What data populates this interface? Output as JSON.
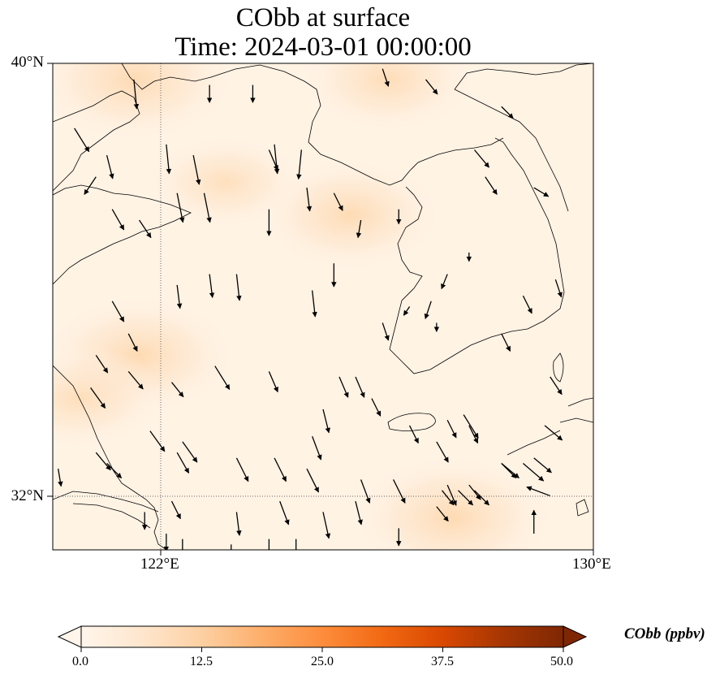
{
  "title": {
    "line1": "CObb at surface",
    "line2": "Time: 2024-03-01 00:00:00"
  },
  "map": {
    "lat_labels": [
      "40°N",
      "32°N"
    ],
    "lon_labels": [
      "122°E",
      "130°E"
    ],
    "extent": {
      "lon_min": 120,
      "lon_max": 130,
      "lat_min": 31,
      "lat_max": 40
    },
    "gridlines": {
      "lon": 122,
      "lat": 32
    }
  },
  "colorbar": {
    "label": "CObb (ppbv)",
    "ticks": [
      "0.0",
      "12.5",
      "25.0",
      "37.5",
      "50.0"
    ],
    "min": 0,
    "max": 50,
    "colors": [
      "#fff5eb",
      "#fee6ce",
      "#fdd0a2",
      "#fdae6b",
      "#fd8d3c",
      "#f16913",
      "#d94801",
      "#a63603",
      "#7f2704"
    ],
    "extend": "both"
  },
  "field_highlights": [
    {
      "lon": 121.6,
      "lat": 34.6,
      "value": 9
    },
    {
      "lon": 125.5,
      "lat": 37.2,
      "value": 8
    },
    {
      "lon": 126.2,
      "lat": 39.7,
      "value": 7
    },
    {
      "lon": 127.4,
      "lat": 31.6,
      "value": 10
    },
    {
      "lon": 121.5,
      "lat": 39.7,
      "value": 10
    },
    {
      "lon": 120.5,
      "lat": 33.8,
      "value": 6
    },
    {
      "lon": 123.2,
      "lat": 37.8,
      "value": 5
    }
  ],
  "wind_vectors": [
    [
      121.5,
      39.7,
      0.1,
      -1
    ],
    [
      120.4,
      38.8,
      0.5,
      -0.8
    ],
    [
      120.8,
      37.9,
      -0.4,
      -0.6
    ],
    [
      121.0,
      38.3,
      0.2,
      -0.8
    ],
    [
      121.1,
      37.3,
      0.4,
      -0.7
    ],
    [
      121.6,
      37.1,
      0.4,
      -0.6
    ],
    [
      122.1,
      38.5,
      0.1,
      -1
    ],
    [
      122.6,
      38.3,
      0.2,
      -1
    ],
    [
      122.8,
      37.6,
      0.2,
      -1
    ],
    [
      122.3,
      37.6,
      0.2,
      -1
    ],
    [
      122.9,
      39.6,
      0,
      -0.6
    ],
    [
      123.7,
      39.6,
      0,
      -0.6
    ],
    [
      124.1,
      38.5,
      0.1,
      -1
    ],
    [
      124.6,
      38.4,
      -0.1,
      -1
    ],
    [
      124.0,
      38.4,
      0.3,
      -0.7
    ],
    [
      124.0,
      37.3,
      0,
      -0.9
    ],
    [
      124.7,
      37.7,
      0.1,
      -0.8
    ],
    [
      125.2,
      37.6,
      0.3,
      -0.6
    ],
    [
      125.7,
      37.1,
      -0.1,
      -0.6
    ],
    [
      126.1,
      39.9,
      0.2,
      -0.6
    ],
    [
      126.9,
      39.7,
      0.4,
      -0.5
    ],
    [
      127.8,
      38.4,
      0.5,
      -0.6
    ],
    [
      128.3,
      39.2,
      0.4,
      -0.4
    ],
    [
      128.0,
      37.9,
      0.4,
      -0.6
    ],
    [
      125.2,
      36.3,
      0,
      -0.8
    ],
    [
      122.3,
      35.9,
      0.1,
      -0.8
    ],
    [
      122.9,
      36.1,
      0.1,
      -0.8
    ],
    [
      123.4,
      36.1,
      0.1,
      -0.9
    ],
    [
      124.8,
      35.8,
      0.1,
      -0.9
    ],
    [
      126.1,
      35.2,
      0.2,
      -0.6
    ],
    [
      127.0,
      35.6,
      -0.2,
      -0.6
    ],
    [
      128.3,
      35.0,
      0.3,
      -0.6
    ],
    [
      128.7,
      35.7,
      0.3,
      -0.6
    ],
    [
      121.1,
      35.6,
      0.4,
      -0.7
    ],
    [
      120.8,
      34.6,
      0.4,
      -0.6
    ],
    [
      121.4,
      35.0,
      0.3,
      -0.6
    ],
    [
      121.4,
      34.3,
      0.5,
      -0.6
    ],
    [
      120.7,
      34.0,
      0.5,
      -0.7
    ],
    [
      122.2,
      34.1,
      0.4,
      -0.5
    ],
    [
      123.0,
      34.4,
      0.5,
      -0.8
    ],
    [
      124.0,
      34.3,
      0.3,
      -0.7
    ],
    [
      125.3,
      34.2,
      0.3,
      -0.7
    ],
    [
      125.9,
      33.8,
      0.3,
      -0.6
    ],
    [
      125.6,
      34.2,
      0.3,
      -0.7
    ],
    [
      126.6,
      33.3,
      0.3,
      -0.6
    ],
    [
      127.3,
      33.4,
      0.3,
      -0.6
    ],
    [
      127.7,
      33.3,
      0.3,
      -0.6
    ],
    [
      129.2,
      34.2,
      0.4,
      -0.6
    ],
    [
      125.0,
      33.6,
      0.2,
      -0.8
    ],
    [
      124.8,
      33.1,
      0.3,
      -0.8
    ],
    [
      121.8,
      33.2,
      0.5,
      -0.7
    ],
    [
      122.4,
      33.0,
      0.5,
      -0.7
    ],
    [
      121.0,
      32.6,
      0.5,
      -0.5
    ],
    [
      120.8,
      32.8,
      0.5,
      -0.6
    ],
    [
      120.1,
      32.5,
      0.1,
      -0.6
    ],
    [
      122.3,
      32.8,
      0.4,
      -0.7
    ],
    [
      122.2,
      31.9,
      0.3,
      -0.6
    ],
    [
      123.4,
      32.7,
      0.4,
      -0.8
    ],
    [
      124.1,
      32.7,
      0.4,
      -0.8
    ],
    [
      124.7,
      32.5,
      0.4,
      -0.8
    ],
    [
      125.7,
      32.3,
      0.3,
      -0.8
    ],
    [
      126.3,
      32.3,
      0.4,
      -0.8
    ],
    [
      127.6,
      33.5,
      0.5,
      -0.8
    ],
    [
      127.1,
      33.0,
      0.4,
      -0.7
    ],
    [
      127.3,
      32.2,
      0.3,
      -0.7
    ],
    [
      127.8,
      32.1,
      0.5,
      -0.5
    ],
    [
      128.3,
      32.6,
      0.6,
      -0.5
    ],
    [
      128.7,
      32.6,
      0.7,
      -0.6
    ],
    [
      128.9,
      32.7,
      0.6,
      -0.5
    ],
    [
      129.1,
      33.3,
      0.6,
      -0.5
    ],
    [
      123.4,
      31.7,
      0.1,
      -0.8
    ],
    [
      124.2,
      31.9,
      0.3,
      -0.8
    ],
    [
      125.0,
      31.7,
      0.2,
      -0.9
    ],
    [
      125.6,
      31.9,
      0.2,
      -0.8
    ],
    [
      124.5,
      31.2,
      0,
      -0.6
    ],
    [
      126.4,
      31.4,
      0,
      -0.6
    ],
    [
      127.1,
      31.8,
      0.4,
      -0.5
    ],
    [
      127.2,
      32.1,
      0.4,
      -0.5
    ],
    [
      127.5,
      32.1,
      0.5,
      -0.5
    ],
    [
      127.7,
      32.2,
      0.4,
      -0.5
    ],
    [
      128.3,
      32.6,
      0.5,
      -0.5
    ],
    [
      128.9,
      31.3,
      0,
      0.8
    ],
    [
      129.2,
      32.0,
      -0.8,
      0.3
    ],
    [
      121.7,
      31.7,
      0,
      -0.6
    ],
    [
      122.1,
      31.3,
      0,
      -0.6
    ],
    [
      122.4,
      31.2,
      0,
      -0.6
    ],
    [
      123.3,
      31.1,
      0,
      -0.8
    ],
    [
      124.0,
      31.2,
      0,
      -0.8
    ],
    [
      126.4,
      37.3,
      0,
      -0.5
    ],
    [
      127.3,
      36.1,
      -0.2,
      -0.5
    ],
    [
      128.9,
      37.7,
      0.5,
      -0.3
    ],
    [
      129.3,
      36.0,
      0.2,
      -0.6
    ],
    [
      127.1,
      35.2,
      0,
      -0.3
    ],
    [
      127.7,
      36.5,
      0,
      -0.3
    ],
    [
      126.6,
      35.5,
      -0.2,
      -0.3
    ]
  ]
}
